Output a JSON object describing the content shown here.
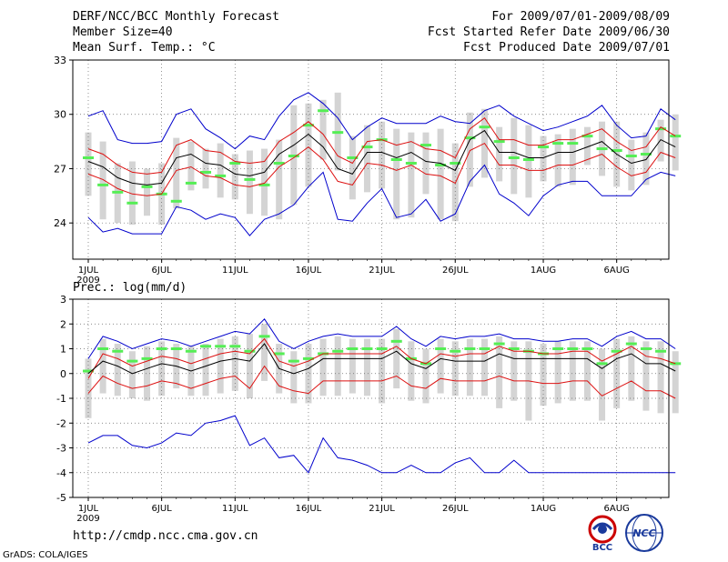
{
  "header": {
    "title": "DERF/NCC/BCC Monthly Forecast",
    "member_size": "Member Size=40",
    "variable": "Mean Surf. Temp.: °C",
    "period": "For 2009/07/01-2009/08/09",
    "refer_date": "Fcst Started Refer Date 2009/06/30",
    "produced_date": "Fcst Produced Date 2009/07/01"
  },
  "footer": {
    "url": "http://cmdp.ncc.cma.gov.cn",
    "credit": "GrADS: COLA/IGES",
    "logo1_text": "BCC",
    "logo2_text": "NCC"
  },
  "colors": {
    "box": "#d4d4d4",
    "median": "#55ee55",
    "mean": "#000000",
    "spread": "#dd1111",
    "extreme": "#0000cc",
    "grid": "#666666"
  },
  "chart_data": [
    {
      "type": "line",
      "title": "Mean Surf. Temp.: °C",
      "ylim": [
        22,
        33
      ],
      "yticks": [
        24,
        27,
        30,
        33
      ],
      "xtick_labels": [
        "1JUL",
        "6JUL",
        "11JUL",
        "16JUL",
        "21JUL",
        "26JUL",
        "1AUG",
        "6AUG"
      ],
      "xtick_days": [
        1,
        6,
        11,
        16,
        21,
        26,
        32,
        37
      ],
      "year_label": "2009",
      "days": 40,
      "series": [
        {
          "name": "max",
          "values": [
            29.9,
            30.2,
            28.6,
            28.4,
            28.4,
            28.5,
            30.0,
            30.3,
            29.2,
            28.7,
            28.1,
            28.8,
            28.6,
            29.9,
            30.8,
            31.2,
            30.6,
            29.8,
            28.6,
            29.3,
            29.8,
            29.5,
            29.5,
            29.5,
            29.9,
            29.6,
            29.5,
            30.2,
            30.5,
            29.9,
            29.5,
            29.1,
            29.3,
            29.6,
            29.9,
            30.5,
            29.4,
            28.7,
            28.8,
            30.3,
            29.7
          ]
        },
        {
          "name": "mean_plus",
          "values": [
            28.1,
            27.8,
            27.2,
            26.8,
            26.7,
            26.8,
            28.3,
            28.6,
            28.0,
            27.9,
            27.4,
            27.3,
            27.4,
            28.5,
            29.0,
            29.6,
            28.9,
            27.7,
            27.3,
            28.5,
            28.6,
            28.3,
            28.5,
            28.1,
            28.0,
            27.6,
            29.2,
            29.8,
            28.6,
            28.6,
            28.3,
            28.3,
            28.6,
            28.6,
            28.9,
            29.2,
            28.5,
            28.0,
            28.2,
            29.3,
            28.8
          ]
        },
        {
          "name": "mean",
          "values": [
            27.4,
            27.1,
            26.5,
            26.2,
            26.1,
            26.2,
            27.6,
            27.8,
            27.3,
            27.2,
            26.7,
            26.6,
            26.8,
            27.8,
            28.3,
            28.9,
            28.2,
            27.0,
            26.7,
            27.9,
            27.9,
            27.6,
            27.9,
            27.4,
            27.3,
            26.9,
            28.6,
            29.1,
            27.9,
            27.9,
            27.6,
            27.6,
            27.9,
            27.9,
            28.2,
            28.5,
            27.8,
            27.3,
            27.5,
            28.6,
            28.2
          ]
        },
        {
          "name": "mean_minus",
          "values": [
            26.7,
            26.4,
            25.9,
            25.6,
            25.5,
            25.6,
            26.9,
            27.1,
            26.6,
            26.5,
            26.1,
            26.0,
            26.2,
            27.1,
            27.6,
            28.2,
            27.5,
            26.3,
            26.1,
            27.3,
            27.2,
            26.9,
            27.2,
            26.7,
            26.6,
            26.2,
            28.0,
            28.4,
            27.2,
            27.2,
            26.9,
            26.9,
            27.2,
            27.2,
            27.5,
            27.8,
            27.1,
            26.6,
            26.8,
            27.9,
            27.6
          ]
        },
        {
          "name": "min",
          "values": [
            24.3,
            23.5,
            23.7,
            23.4,
            23.4,
            23.4,
            24.9,
            24.7,
            24.2,
            24.5,
            24.3,
            23.3,
            24.2,
            24.5,
            25.0,
            26.0,
            26.8,
            24.2,
            24.1,
            25.1,
            25.9,
            24.3,
            24.5,
            25.3,
            24.1,
            24.5,
            26.3,
            27.2,
            25.6,
            25.1,
            24.4,
            25.5,
            26.1,
            26.3,
            26.3,
            25.5,
            25.5,
            25.5,
            26.4,
            26.8,
            26.6
          ]
        },
        {
          "name": "median",
          "values": [
            27.6,
            26.1,
            25.7,
            25.1,
            26.0,
            25.6,
            25.2,
            26.2,
            26.8,
            26.6,
            27.3,
            26.4,
            26.1,
            27.3,
            27.7,
            29.4,
            30.2,
            29.0,
            27.6,
            28.2,
            28.6,
            27.5,
            27.3,
            28.3,
            27.2,
            27.3,
            28.7,
            29.3,
            28.5,
            27.6,
            27.5,
            28.2,
            28.4,
            28.4,
            28.8,
            28.1,
            28.0,
            27.7,
            27.8,
            29.2,
            28.8
          ]
        },
        {
          "name": "box_high",
          "values": [
            29.0,
            28.5,
            27.3,
            27.4,
            27.0,
            27.3,
            28.7,
            28.5,
            28.1,
            28.4,
            27.8,
            28.0,
            28.1,
            28.6,
            30.5,
            30.6,
            30.8,
            31.2,
            28.8,
            29.4,
            29.6,
            29.2,
            29.0,
            29.0,
            29.2,
            28.4,
            30.1,
            30.3,
            29.3,
            29.8,
            29.4,
            28.8,
            28.9,
            29.2,
            29.3,
            29.6,
            29.6,
            28.6,
            29.0,
            29.7,
            30.0
          ]
        },
        {
          "name": "box_low",
          "values": [
            25.5,
            24.2,
            24.0,
            23.9,
            24.4,
            23.9,
            24.8,
            25.8,
            25.9,
            25.4,
            25.3,
            24.5,
            24.4,
            24.2,
            25.0,
            26.0,
            27.5,
            26.9,
            25.3,
            25.7,
            25.9,
            24.2,
            24.3,
            25.6,
            24.2,
            24.1,
            26.0,
            26.5,
            26.3,
            25.6,
            25.4,
            26.3,
            26.0,
            26.1,
            27.2,
            26.6,
            26.0,
            25.8,
            26.1,
            27.4,
            26.9
          ]
        }
      ]
    },
    {
      "type": "line",
      "title": "Prec.: log(mm/d)",
      "ylim": [
        -5,
        3
      ],
      "yticks": [
        -5,
        -4,
        -3,
        -2,
        -1,
        0,
        1,
        2,
        3
      ],
      "xtick_labels": [
        "1JUL",
        "6JUL",
        "11JUL",
        "16JUL",
        "21JUL",
        "26JUL",
        "1AUG",
        "6AUG"
      ],
      "xtick_days": [
        1,
        6,
        11,
        16,
        21,
        26,
        32,
        37
      ],
      "year_label": "2009",
      "days": 40,
      "series": [
        {
          "name": "max",
          "values": [
            0.6,
            1.5,
            1.3,
            1.0,
            1.2,
            1.4,
            1.3,
            1.1,
            1.3,
            1.5,
            1.7,
            1.6,
            2.2,
            1.3,
            1.0,
            1.3,
            1.5,
            1.6,
            1.5,
            1.5,
            1.5,
            1.9,
            1.4,
            1.1,
            1.5,
            1.4,
            1.5,
            1.5,
            1.6,
            1.4,
            1.4,
            1.3,
            1.3,
            1.4,
            1.4,
            1.1,
            1.5,
            1.7,
            1.4,
            1.4,
            1.0
          ]
        },
        {
          "name": "mean_plus",
          "values": [
            -0.2,
            0.8,
            0.6,
            0.3,
            0.5,
            0.7,
            0.6,
            0.4,
            0.6,
            0.8,
            0.9,
            0.8,
            1.4,
            0.5,
            0.3,
            0.5,
            0.8,
            0.8,
            0.8,
            0.8,
            0.8,
            1.1,
            0.6,
            0.4,
            0.8,
            0.7,
            0.8,
            0.8,
            1.1,
            0.9,
            0.9,
            0.8,
            0.8,
            0.9,
            0.9,
            0.5,
            0.8,
            1.1,
            0.7,
            0.6,
            0.4
          ]
        },
        {
          "name": "mean",
          "values": [
            0.0,
            0.5,
            0.3,
            0.0,
            0.2,
            0.4,
            0.3,
            0.1,
            0.3,
            0.5,
            0.6,
            0.5,
            1.2,
            0.2,
            0.0,
            0.2,
            0.6,
            0.6,
            0.6,
            0.6,
            0.6,
            0.9,
            0.4,
            0.2,
            0.6,
            0.5,
            0.5,
            0.5,
            0.8,
            0.6,
            0.6,
            0.6,
            0.6,
            0.6,
            0.6,
            0.2,
            0.6,
            0.8,
            0.4,
            0.4,
            0.1
          ]
        },
        {
          "name": "mean_minus",
          "values": [
            -0.8,
            -0.1,
            -0.4,
            -0.6,
            -0.5,
            -0.3,
            -0.4,
            -0.6,
            -0.4,
            -0.2,
            -0.1,
            -0.6,
            0.3,
            -0.5,
            -0.7,
            -0.8,
            -0.3,
            -0.3,
            -0.3,
            -0.3,
            -0.3,
            -0.1,
            -0.5,
            -0.6,
            -0.2,
            -0.3,
            -0.3,
            -0.3,
            -0.1,
            -0.3,
            -0.3,
            -0.4,
            -0.4,
            -0.3,
            -0.3,
            -0.9,
            -0.6,
            -0.3,
            -0.7,
            -0.7,
            -1.0
          ]
        },
        {
          "name": "min",
          "values": [
            -2.8,
            -2.5,
            -2.5,
            -2.9,
            -3.0,
            -2.8,
            -2.4,
            -2.5,
            -2.0,
            -1.9,
            -1.7,
            -2.9,
            -2.6,
            -3.4,
            -3.3,
            -4.0,
            -2.6,
            -3.4,
            -3.5,
            -3.7,
            -4.0,
            -4.0,
            -3.7,
            -4.0,
            -4.0,
            -3.6,
            -3.4,
            -4.0,
            -4.0,
            -3.5,
            -4.0,
            -4.0,
            -4.0,
            -4.0,
            -4.0,
            -4.0,
            -4.0,
            -4.0,
            -4.0,
            -4.0,
            -4.0
          ]
        },
        {
          "name": "median",
          "values": [
            0.1,
            1.0,
            0.9,
            0.5,
            0.6,
            1.0,
            1.0,
            0.9,
            1.1,
            1.1,
            1.1,
            0.9,
            1.5,
            0.8,
            0.5,
            0.6,
            0.8,
            0.9,
            1.0,
            1.0,
            1.0,
            1.3,
            0.6,
            0.4,
            1.0,
            0.9,
            1.0,
            1.0,
            1.2,
            1.0,
            0.9,
            0.8,
            1.0,
            1.0,
            1.0,
            0.4,
            0.9,
            1.2,
            1.0,
            0.9,
            0.4
          ]
        },
        {
          "name": "box_high",
          "values": [
            0.6,
            1.4,
            1.2,
            0.9,
            1.1,
            1.3,
            1.2,
            1.1,
            1.2,
            1.4,
            1.5,
            1.6,
            2.0,
            1.2,
            0.9,
            1.2,
            1.4,
            1.5,
            1.4,
            1.4,
            1.4,
            1.8,
            1.3,
            1.0,
            1.4,
            1.3,
            1.4,
            1.4,
            1.5,
            1.3,
            1.3,
            1.2,
            1.3,
            1.3,
            1.3,
            1.0,
            1.4,
            1.5,
            1.3,
            1.3,
            0.9
          ]
        },
        {
          "name": "box_low",
          "values": [
            -1.8,
            -0.8,
            -0.9,
            -1.0,
            -1.1,
            -0.9,
            -0.6,
            -0.9,
            -0.9,
            -0.8,
            -0.7,
            -1.0,
            -0.3,
            -0.8,
            -1.2,
            -1.2,
            -0.9,
            -0.9,
            -0.8,
            -0.9,
            -1.2,
            -0.6,
            -1.1,
            -1.2,
            -0.8,
            -0.9,
            -0.9,
            -0.9,
            -1.4,
            -1.1,
            -1.9,
            -1.3,
            -1.2,
            -1.1,
            -1.1,
            -1.9,
            -1.4,
            -1.1,
            -1.5,
            -1.6,
            -1.6
          ]
        }
      ]
    }
  ]
}
